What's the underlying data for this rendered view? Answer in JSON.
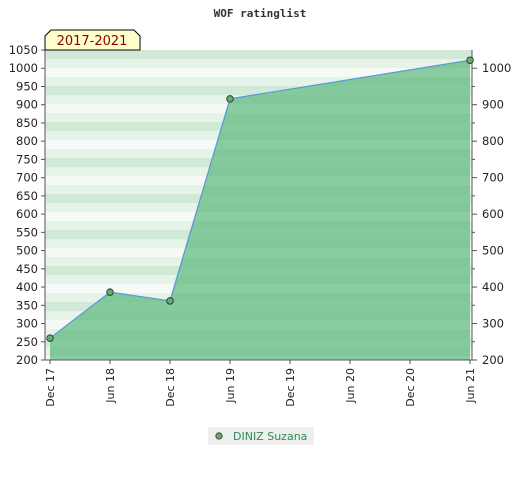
{
  "chart_data": {
    "type": "area",
    "title": "WOF ratinglist",
    "period_badge": "2017-2021",
    "x": [
      "Dec 17",
      "Jun 18",
      "Dec 18",
      "Jun 19",
      "Dec 19",
      "Jun 20",
      "Dec 20",
      "Jun 21"
    ],
    "series": [
      {
        "name": "DINIZ Suzana",
        "x": [
          "Dec 17",
          "Jun 18",
          "Dec 18",
          "Jun 19",
          "Jun 21"
        ],
        "values": [
          260,
          386,
          362,
          916,
          1022
        ]
      }
    ],
    "y_left": {
      "range": [
        200,
        1050
      ],
      "ticks": [
        200,
        250,
        300,
        350,
        400,
        450,
        500,
        550,
        600,
        650,
        700,
        750,
        800,
        850,
        900,
        950,
        1000,
        1050
      ]
    },
    "y_right": {
      "range": [
        200,
        1050
      ],
      "ticks": [
        200,
        300,
        400,
        500,
        600,
        700,
        800,
        900,
        1000
      ]
    },
    "grid": false,
    "legend_position": "bottom-center",
    "colors": {
      "line": "#5b9bd5",
      "fill": "#6dbf8a",
      "marker": "#5fae6f",
      "badge_bg": "#ffffcc",
      "legend_text": "#2e8b57"
    }
  }
}
